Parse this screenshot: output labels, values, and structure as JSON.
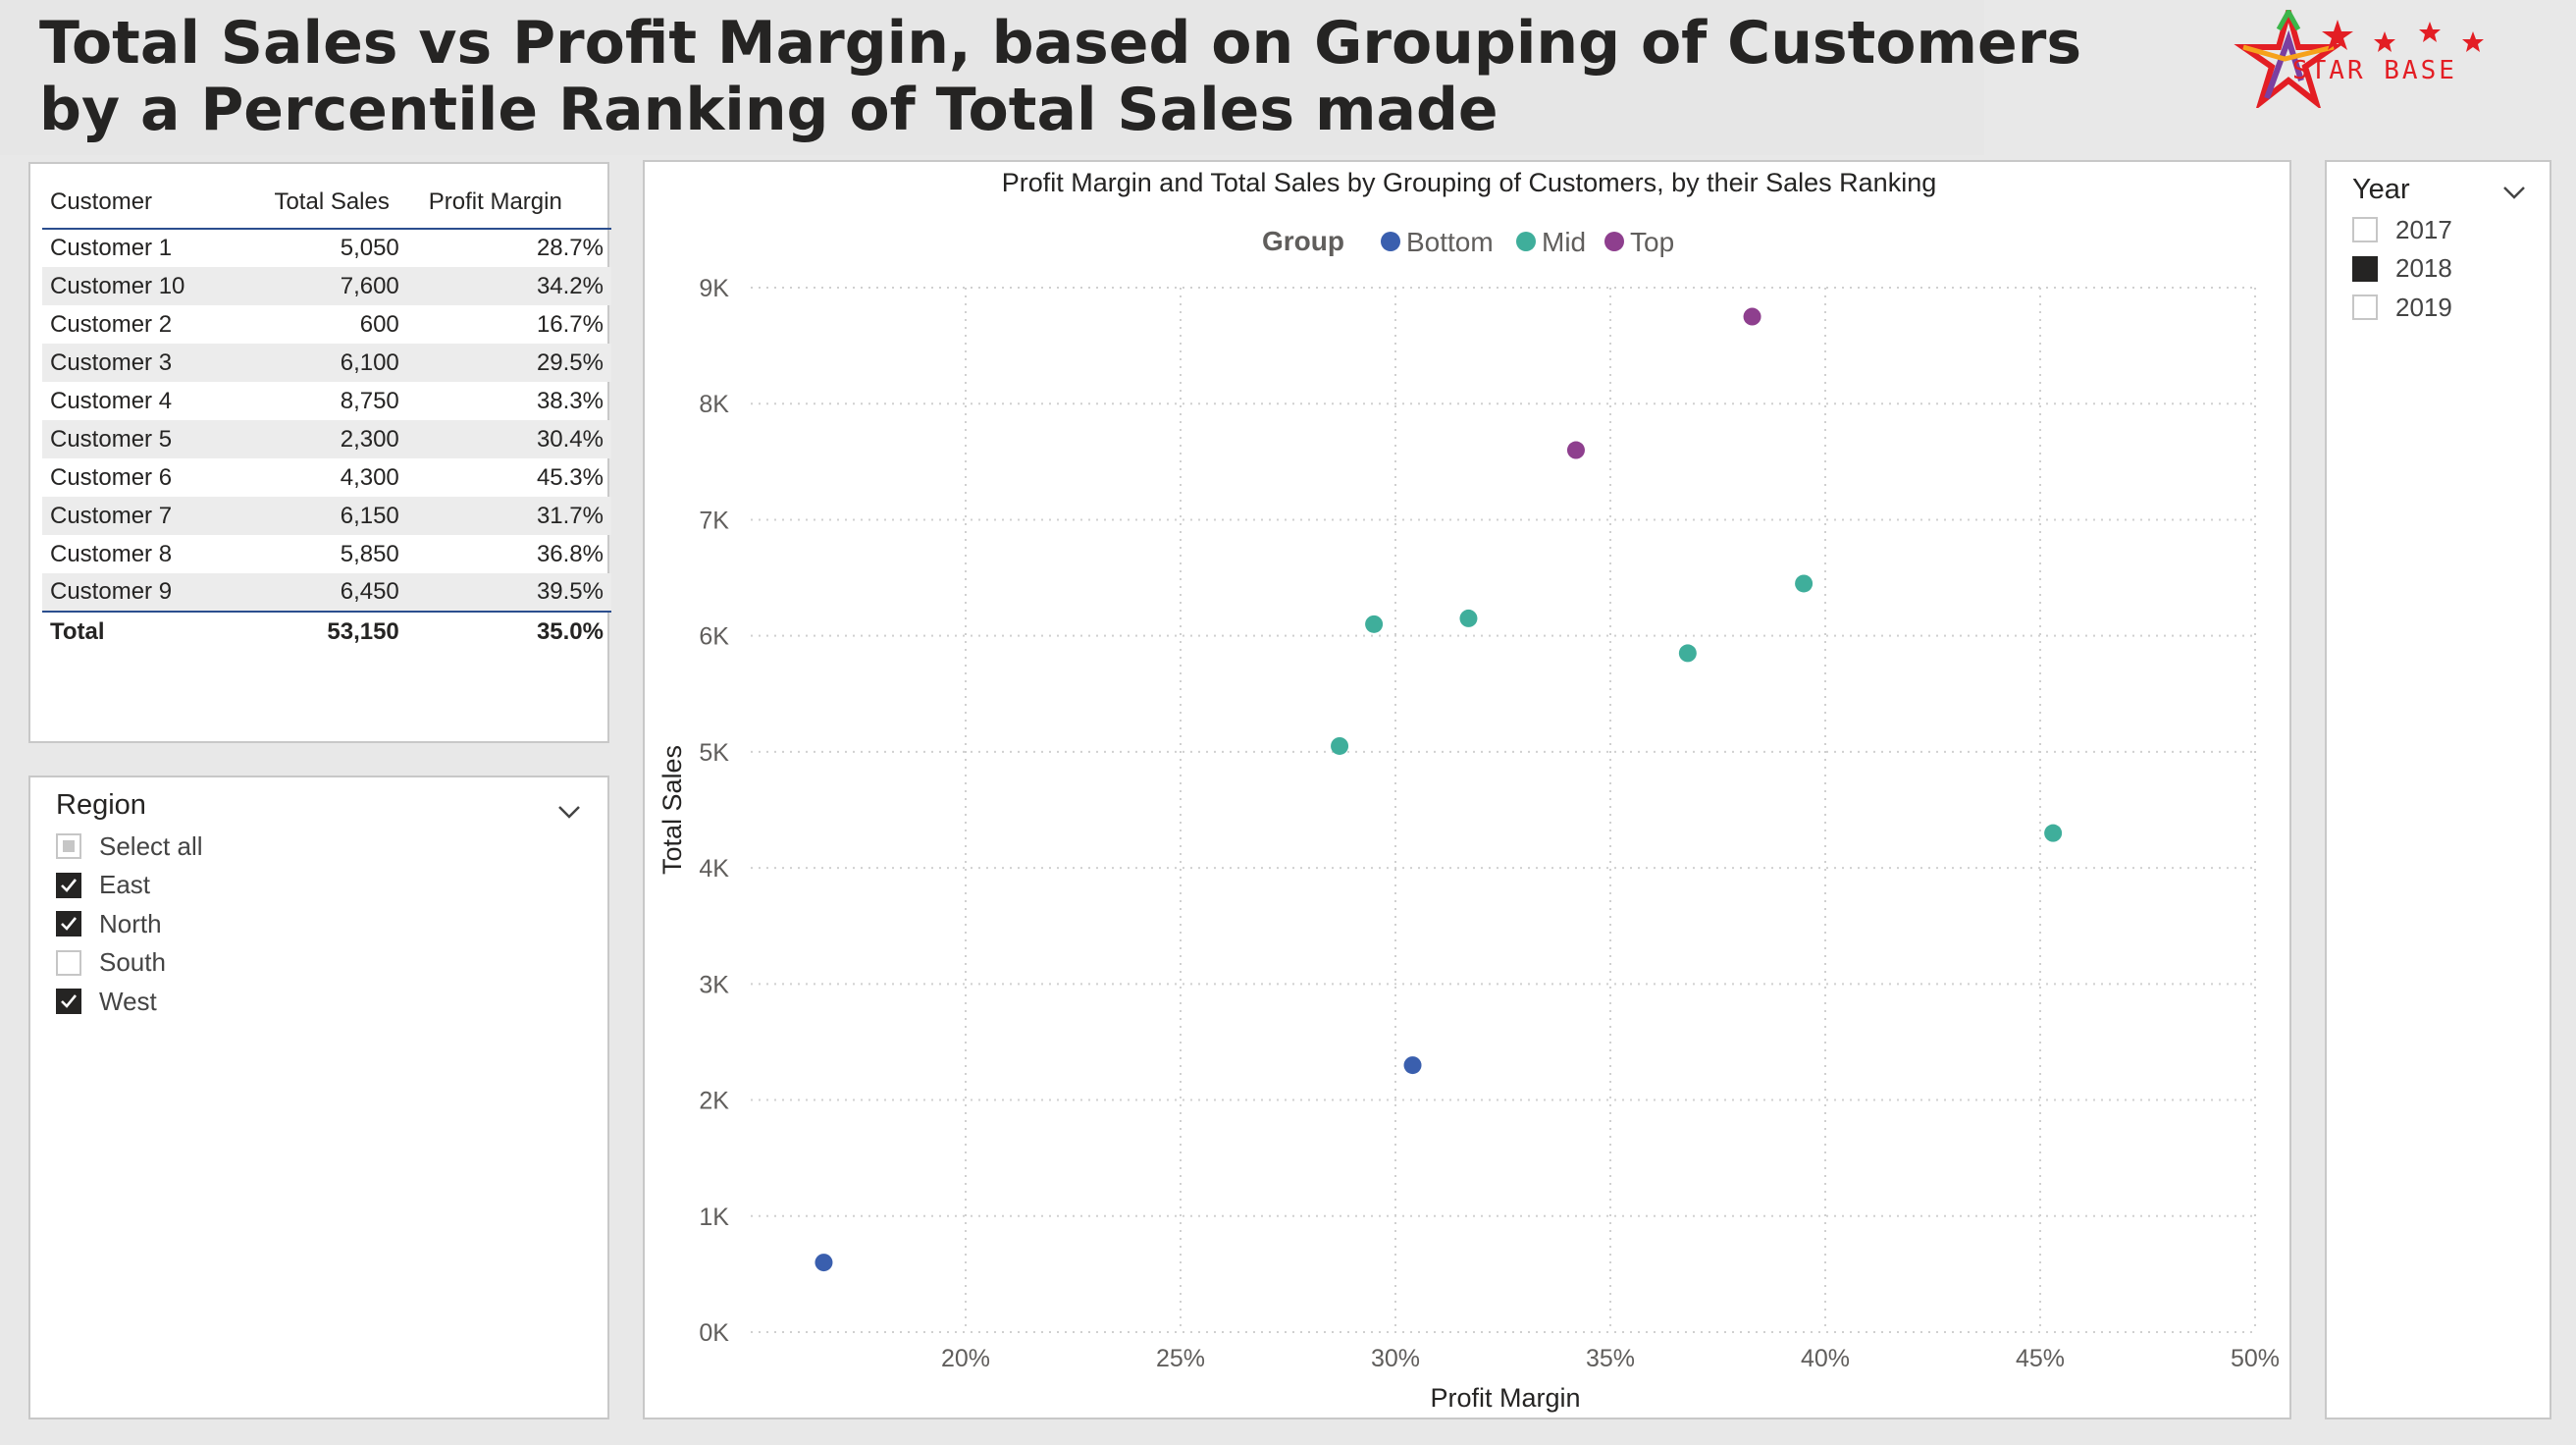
{
  "header": {
    "title_line1": "Total Sales vs Profit Margin, based on Grouping of Customers",
    "title_line2": "by a Percentile Ranking of Total Sales made",
    "logo_text": "STAR BASE"
  },
  "table": {
    "columns": [
      "Customer",
      "Total Sales",
      "Profit Margin"
    ],
    "rows": [
      [
        "Customer 1",
        "5,050",
        "28.7%"
      ],
      [
        "Customer 10",
        "7,600",
        "34.2%"
      ],
      [
        "Customer 2",
        "600",
        "16.7%"
      ],
      [
        "Customer 3",
        "6,100",
        "29.5%"
      ],
      [
        "Customer 4",
        "8,750",
        "38.3%"
      ],
      [
        "Customer 5",
        "2,300",
        "30.4%"
      ],
      [
        "Customer 6",
        "4,300",
        "45.3%"
      ],
      [
        "Customer 7",
        "6,150",
        "31.7%"
      ],
      [
        "Customer 8",
        "5,850",
        "36.8%"
      ],
      [
        "Customer 9",
        "6,450",
        "39.5%"
      ]
    ],
    "total": [
      "Total",
      "53,150",
      "35.0%"
    ]
  },
  "region_slicer": {
    "title": "Region",
    "options": [
      {
        "label": "Select all",
        "state": "partial"
      },
      {
        "label": "East",
        "state": "checked"
      },
      {
        "label": "North",
        "state": "checked"
      },
      {
        "label": "South",
        "state": "unchecked"
      },
      {
        "label": "West",
        "state": "checked"
      }
    ]
  },
  "year_slicer": {
    "title": "Year",
    "options": [
      {
        "label": "2017",
        "state": "unchecked"
      },
      {
        "label": "2018",
        "state": "selected"
      },
      {
        "label": "2019",
        "state": "unchecked"
      }
    ]
  },
  "colors": {
    "Bottom": "#3a5fae",
    "Mid": "#3fae9b",
    "Top": "#8e3f8e",
    "border": "#c8c8c8",
    "accent_line": "#2b4e8e"
  },
  "chart_data": {
    "type": "scatter",
    "title": "Profit Margin and Total Sales by Grouping of Customers, by their Sales Ranking",
    "xlabel": "Profit Margin",
    "ylabel": "Total Sales",
    "legend_title": "Group",
    "legend_placement": "top-center",
    "xlim": [
      15,
      50
    ],
    "ylim": [
      0,
      9000
    ],
    "x_ticks": [
      20,
      25,
      30,
      35,
      40,
      45,
      50
    ],
    "x_tick_labels": [
      "20%",
      "25%",
      "30%",
      "35%",
      "40%",
      "45%",
      "50%"
    ],
    "y_ticks": [
      0,
      1000,
      2000,
      3000,
      4000,
      5000,
      6000,
      7000,
      8000,
      9000
    ],
    "y_tick_labels": [
      "0K",
      "1K",
      "2K",
      "3K",
      "4K",
      "5K",
      "6K",
      "7K",
      "8K",
      "9K"
    ],
    "grid": true,
    "series": [
      {
        "name": "Bottom",
        "points": [
          [
            16.7,
            600
          ],
          [
            30.4,
            2300
          ]
        ]
      },
      {
        "name": "Mid",
        "points": [
          [
            28.7,
            5050
          ],
          [
            29.5,
            6100
          ],
          [
            31.7,
            6150
          ],
          [
            36.8,
            5850
          ],
          [
            39.5,
            6450
          ],
          [
            45.3,
            4300
          ]
        ]
      },
      {
        "name": "Top",
        "points": [
          [
            34.2,
            7600
          ],
          [
            38.3,
            8750
          ]
        ]
      }
    ]
  }
}
